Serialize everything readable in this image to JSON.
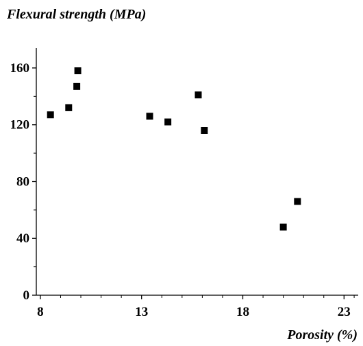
{
  "chart_data": {
    "type": "scatter",
    "title": "",
    "ylabel": "Flexural strength (MPa)",
    "xlabel": "Porosity (%)",
    "xlim": [
      7.8,
      23.7
    ],
    "ylim": [
      0,
      174
    ],
    "x_ticks": [
      8,
      13,
      18,
      23
    ],
    "x_tick_labels": [
      "8",
      "13",
      "18",
      "23"
    ],
    "x_minor_ticks": [
      9,
      10,
      11,
      12,
      14,
      15,
      16,
      17,
      19,
      20,
      21,
      22,
      23.5
    ],
    "y_ticks": [
      0,
      40,
      80,
      120,
      160
    ],
    "y_tick_labels": [
      "0",
      "40",
      "80",
      "120",
      "160"
    ],
    "y_minor_ticks": [
      20,
      60,
      100,
      140
    ],
    "grid": false,
    "legend": "none",
    "marker": "square",
    "marker_color": "#000000",
    "series": [
      {
        "points": [
          {
            "x": 8.5,
            "y": 127
          },
          {
            "x": 9.4,
            "y": 132
          },
          {
            "x": 9.8,
            "y": 147
          },
          {
            "x": 9.85,
            "y": 158
          },
          {
            "x": 13.4,
            "y": 126
          },
          {
            "x": 14.3,
            "y": 122
          },
          {
            "x": 15.8,
            "y": 141
          },
          {
            "x": 16.1,
            "y": 116
          },
          {
            "x": 20.0,
            "y": 48
          },
          {
            "x": 20.7,
            "y": 66
          }
        ]
      }
    ]
  }
}
